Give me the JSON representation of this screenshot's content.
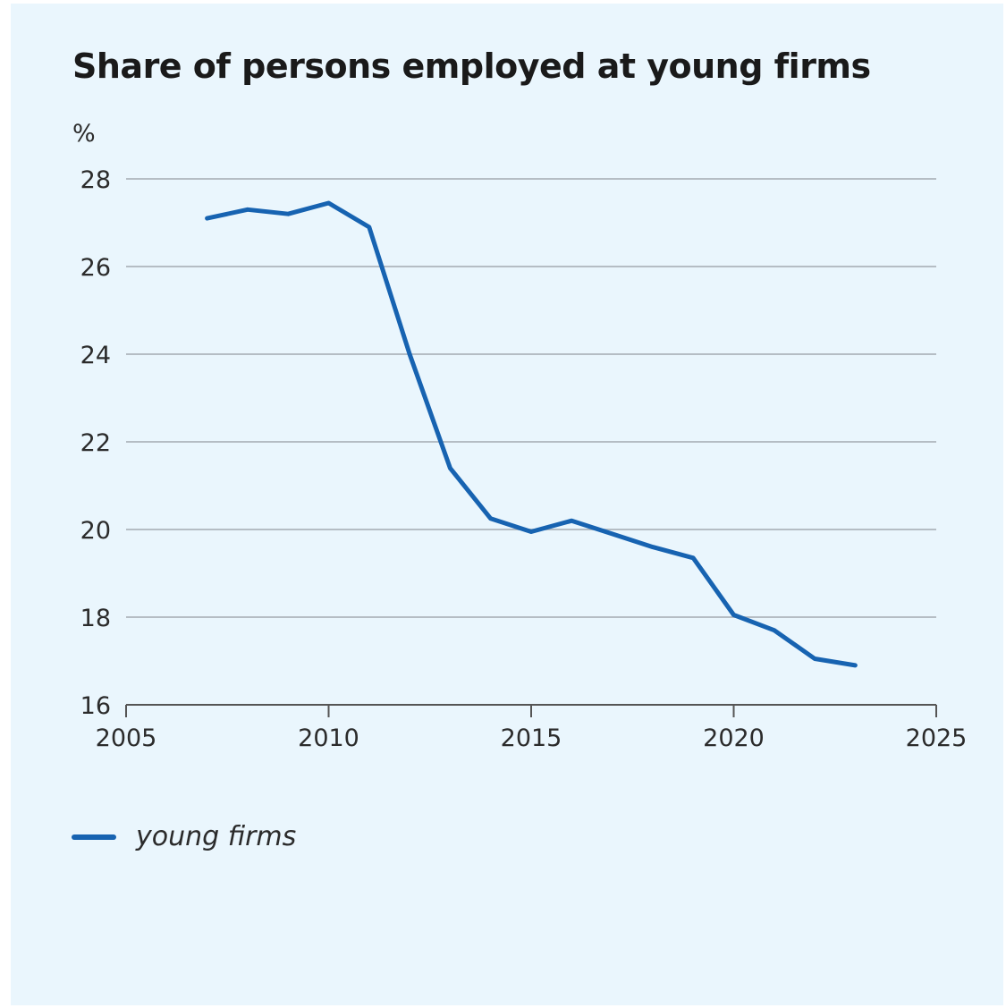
{
  "chart_data": {
    "type": "line",
    "title": "Share of persons employed at young firms",
    "ylabel": "%",
    "xlabel": "",
    "xlim": [
      2005,
      2025
    ],
    "ylim": [
      16,
      28
    ],
    "xticks": [
      2005,
      2010,
      2015,
      2020,
      2025
    ],
    "yticks": [
      16,
      18,
      20,
      22,
      24,
      26,
      28
    ],
    "grid": true,
    "legend_position": "bottom-left",
    "series": [
      {
        "name": "young firms",
        "color": "#1763b1",
        "x": [
          2007,
          2008,
          2009,
          2010,
          2011,
          2012,
          2013,
          2014,
          2015,
          2016,
          2017,
          2018,
          2019,
          2020,
          2021,
          2022,
          2023
        ],
        "values": [
          27.1,
          27.3,
          27.2,
          27.45,
          26.9,
          24.0,
          21.4,
          20.25,
          19.95,
          20.2,
          19.9,
          19.6,
          19.35,
          18.05,
          17.7,
          17.05,
          16.9
        ]
      }
    ]
  },
  "colors": {
    "background": "#eaf6fd",
    "grid": "#b5bdc4",
    "axis": "#555555",
    "series": "#1763b1"
  }
}
